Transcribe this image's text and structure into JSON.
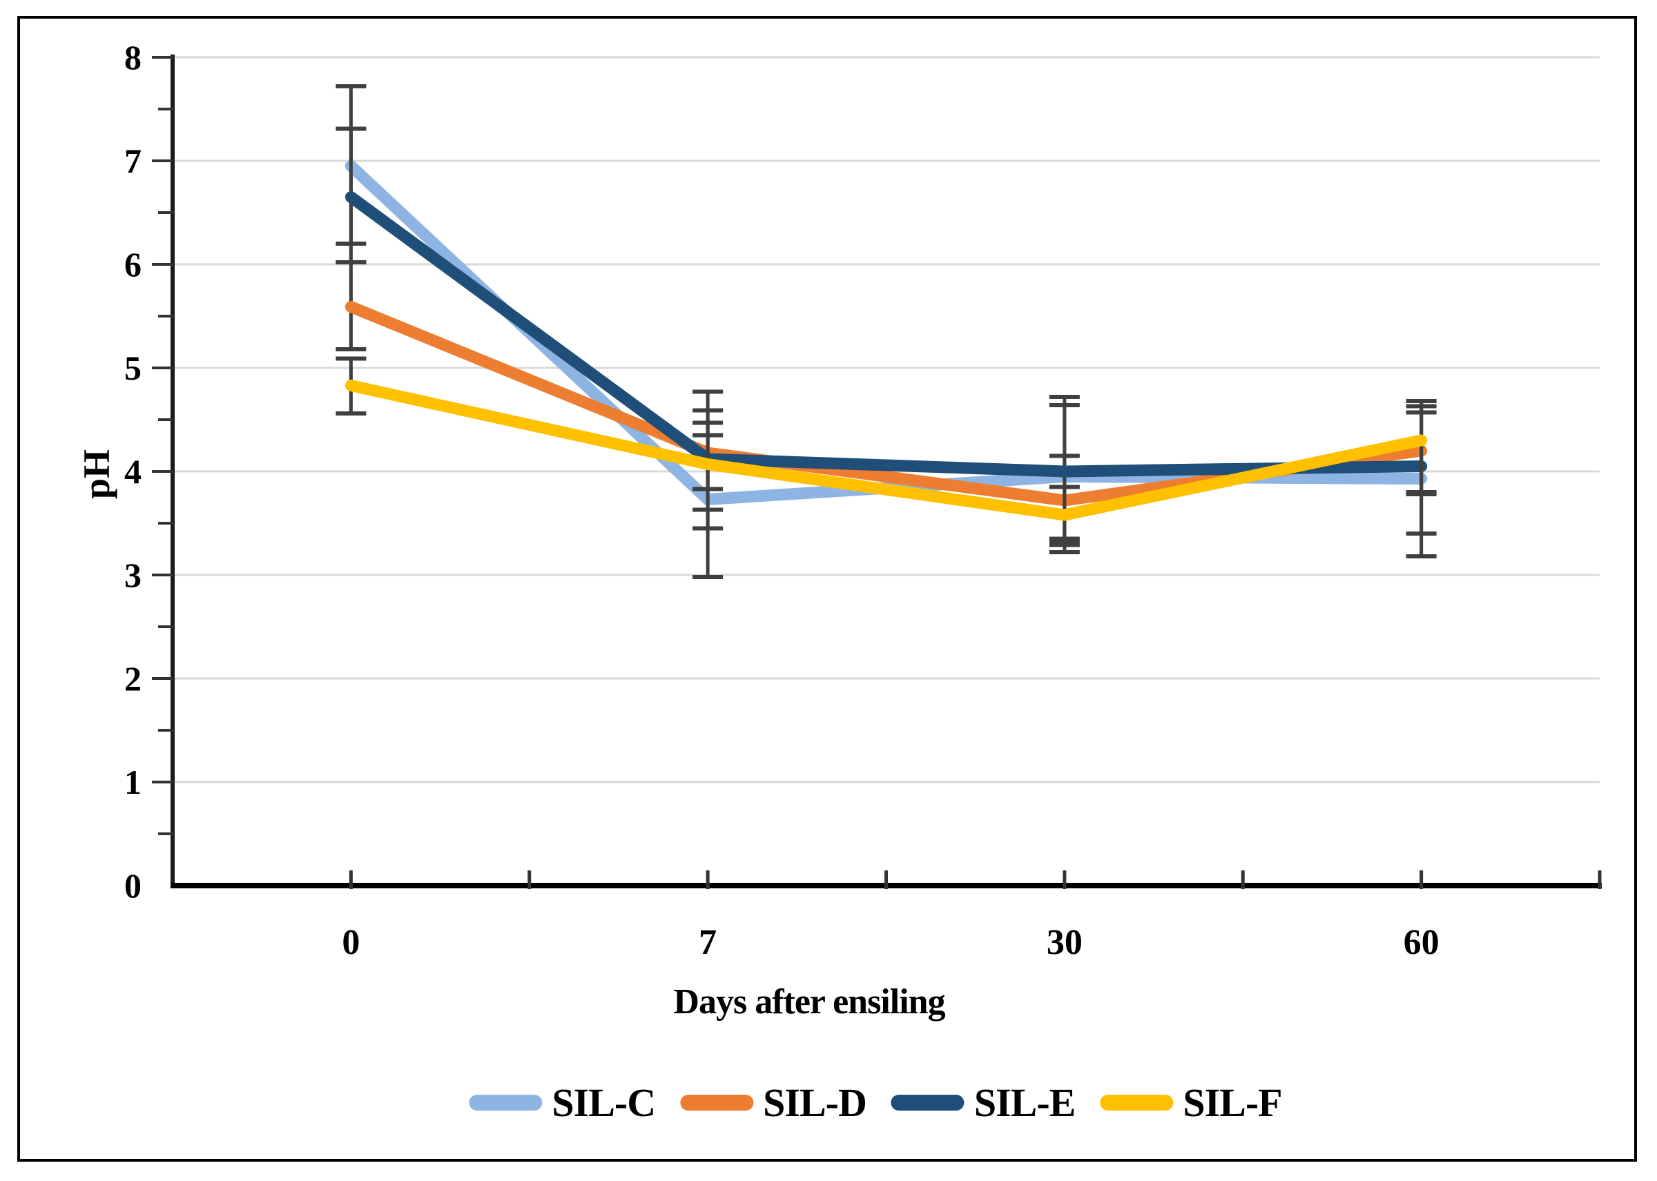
{
  "chart_data": {
    "type": "line",
    "xlabel": "Days after ensiling",
    "ylabel": "pH",
    "categories": [
      0,
      7,
      30,
      60
    ],
    "xtick_labels": [
      "0",
      "7",
      "30",
      "60"
    ],
    "ytick_labels": [
      "0",
      "1",
      "2",
      "3",
      "4",
      "5",
      "6",
      "7",
      "8"
    ],
    "ylim": [
      0,
      8
    ],
    "ytick_step": 1,
    "ytick_minor_step": 0.5,
    "grid": "horizontal",
    "error_bars": true,
    "legend_position": "bottom",
    "series": [
      {
        "name": "SIL-C",
        "color": "#8DB4E2",
        "values": [
          6.95,
          3.73,
          3.95,
          3.93
        ],
        "err_up": [
          0.77,
          0.74,
          0.69,
          0.75
        ],
        "err_down": [
          0.75,
          0.75,
          0.62,
          0.75
        ]
      },
      {
        "name": "SIL-D",
        "color": "#ED7D31",
        "values": [
          5.59,
          4.18,
          3.72,
          4.2
        ],
        "err_up": [
          0.43,
          0.59,
          0.43,
          0.43
        ],
        "err_down": [
          0.41,
          0.55,
          0.43,
          0.42
        ]
      },
      {
        "name": "SIL-E",
        "color": "#1F4E79",
        "values": [
          6.65,
          4.12,
          4.0,
          4.05
        ],
        "err_up": [
          0.66,
          0.47,
          0.72,
          0.52
        ],
        "err_down": [
          0.63,
          0.67,
          0.65,
          0.65
        ]
      },
      {
        "name": "SIL-F",
        "color": "#FFC000",
        "values": [
          4.83,
          4.07,
          3.58,
          4.3
        ],
        "err_up": [
          0.26,
          0.28,
          0.27,
          0.38
        ],
        "err_down": [
          0.27,
          0.24,
          0.36,
          0.5
        ]
      }
    ]
  },
  "colors": {
    "gridline": "#D9D9D9",
    "axis": "#1A1A1A",
    "tick": "#333333",
    "error_bar": "#3F3F3F",
    "text": "#000000",
    "frame": "#000000",
    "background": "#FFFFFF"
  }
}
